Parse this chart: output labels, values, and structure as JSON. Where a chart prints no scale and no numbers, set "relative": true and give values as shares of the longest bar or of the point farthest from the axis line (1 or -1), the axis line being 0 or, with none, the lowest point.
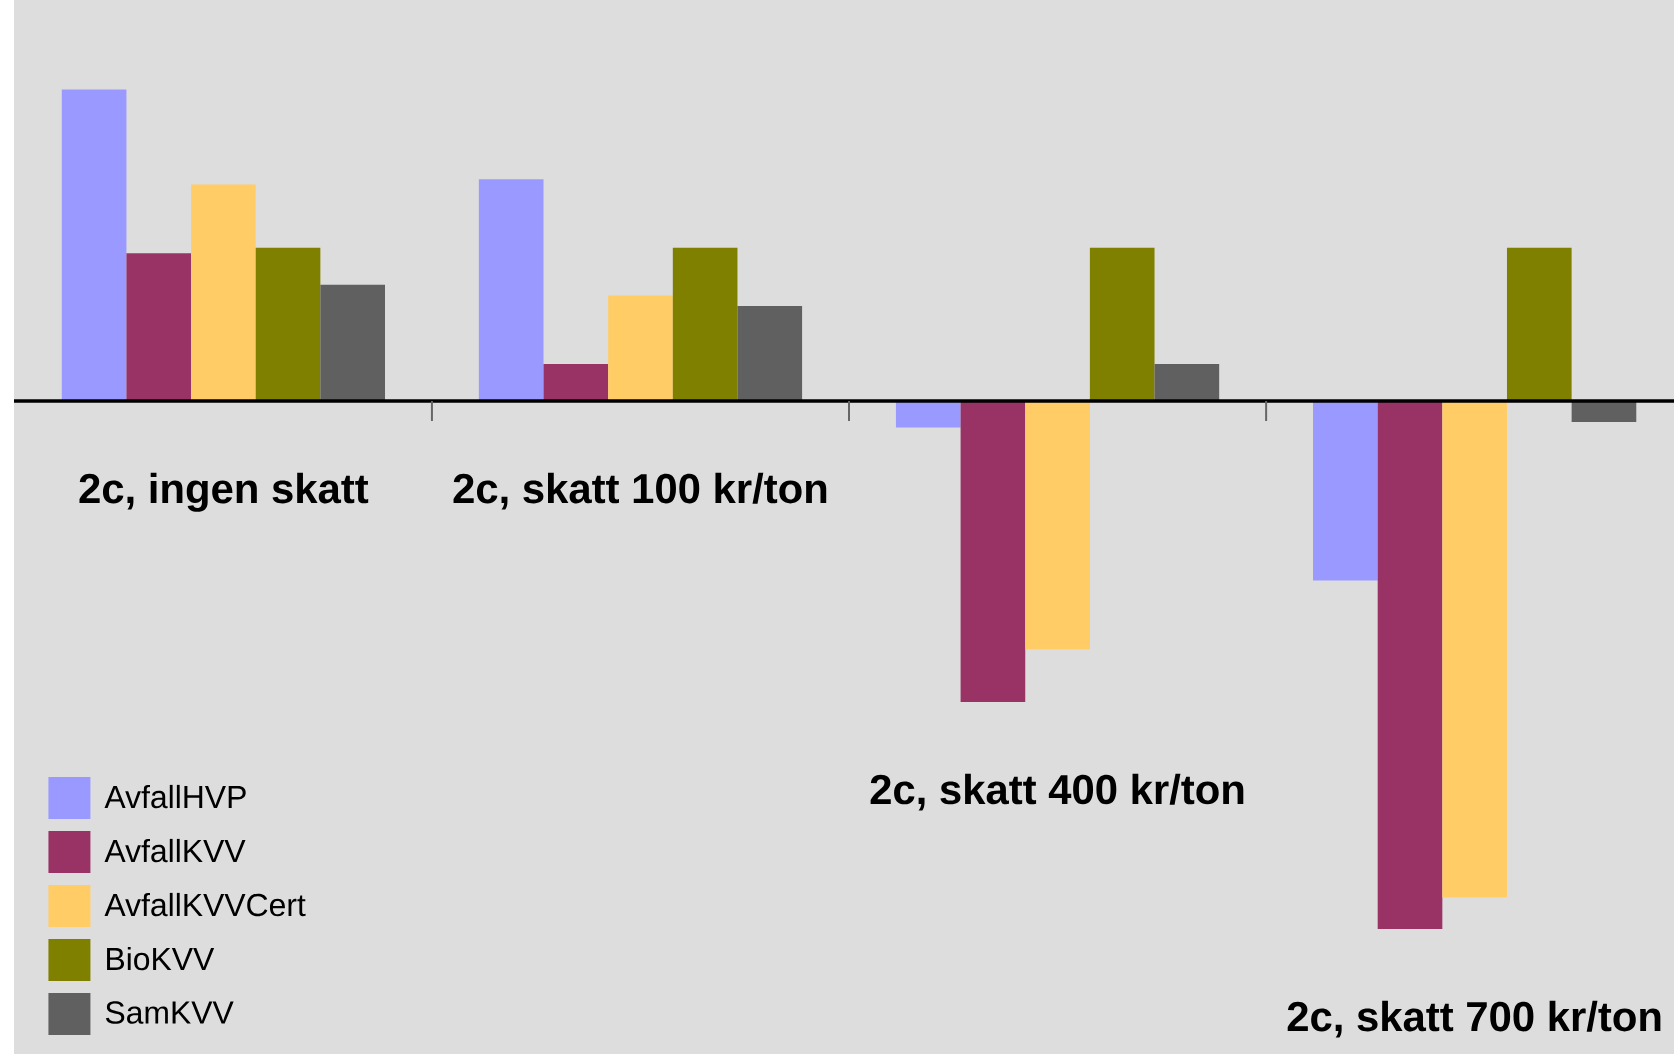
{
  "chart_data": {
    "type": "bar",
    "relative": true,
    "legend": "bottom left",
    "categories": [
      "2c, ingen skatt",
      "2c, skatt 100 kr/ton",
      "2c, skatt 400 kr/ton",
      "2c, skatt 700 kr/ton"
    ],
    "series": [
      {
        "name": "AvfallHVP",
        "color": "#9999ff",
        "values": [
          0.59,
          0.42,
          -0.05,
          -0.34
        ]
      },
      {
        "name": "AvfallKVV",
        "color": "#993366",
        "values": [
          0.28,
          0.07,
          -0.57,
          -1
        ]
      },
      {
        "name": "AvfallKVVCert",
        "color": "#ffcc66",
        "values": [
          0.41,
          0.2,
          -0.47,
          -0.94
        ]
      },
      {
        "name": "BioKVV",
        "color": "#808000",
        "values": [
          0.29,
          0.29,
          0.29,
          0.29
        ]
      },
      {
        "name": "SamKVV",
        "color": "#606060",
        "values": [
          0.22,
          0.18,
          0.07,
          -0.04
        ]
      }
    ]
  }
}
